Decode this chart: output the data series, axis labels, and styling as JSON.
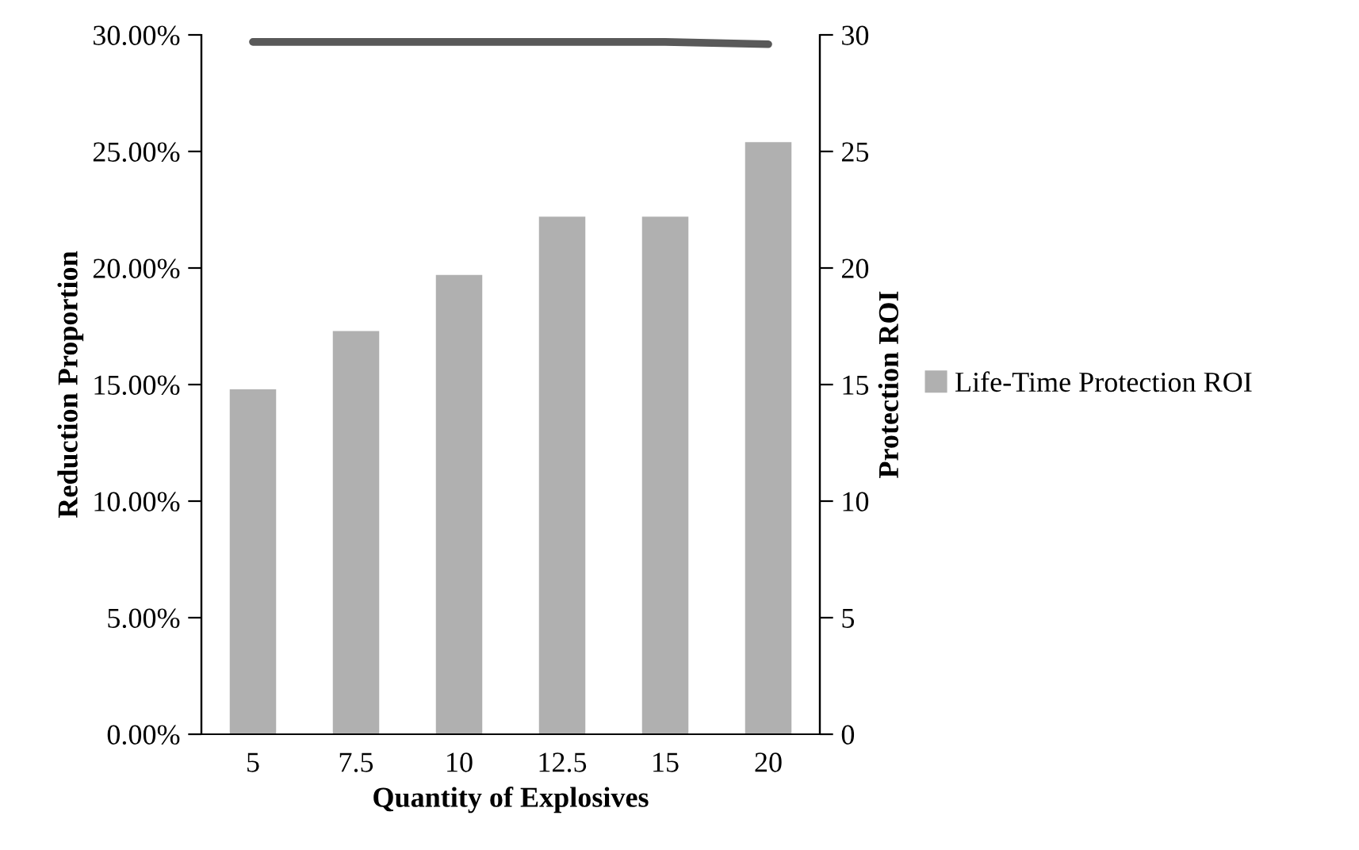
{
  "chart_data": {
    "type": "bar",
    "xlabel": "Quantity of Explosives",
    "ylabel": "Reduction Proportion",
    "y2label": "Protection ROI",
    "categories": [
      "5",
      "7.5",
      "10",
      "12.5",
      "15",
      "20"
    ],
    "series": [
      {
        "name": "Life-Time Protection ROI",
        "axis": "y2",
        "color": "#b0b0b0",
        "values": [
          14.8,
          17.3,
          19.7,
          22.2,
          22.2,
          25.4
        ]
      },
      {
        "type": "line",
        "axis": "y",
        "color": "#595959",
        "values": [
          0.297,
          0.297,
          0.297,
          0.297,
          0.297,
          0.296
        ]
      }
    ],
    "ylim": [
      0,
      0.3
    ],
    "yticks": [
      {
        "value": 0,
        "label": "0.00%"
      },
      {
        "value": 0.05,
        "label": "5.00%"
      },
      {
        "value": 0.1,
        "label": "10.00%"
      },
      {
        "value": 0.15,
        "label": "15.00%"
      },
      {
        "value": 0.2,
        "label": "20.00%"
      },
      {
        "value": 0.25,
        "label": "25.00%"
      },
      {
        "value": 0.3,
        "label": "30.00%"
      }
    ],
    "y2lim": [
      0,
      30
    ],
    "y2ticks": [
      0,
      5,
      10,
      15,
      20,
      25,
      30
    ],
    "legend": "right",
    "grid": false,
    "marker": "none",
    "line_style": "solid"
  }
}
